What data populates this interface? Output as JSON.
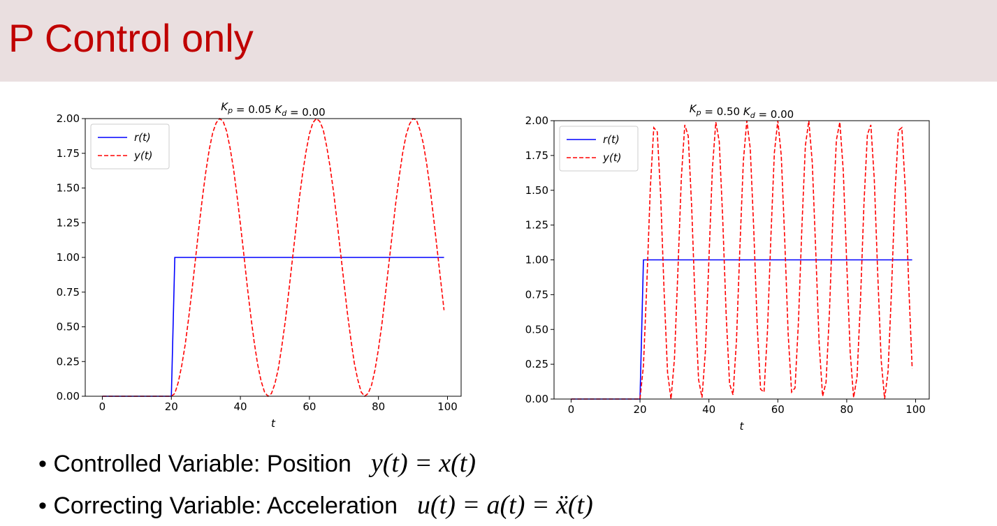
{
  "title": "P Control only",
  "bullets": [
    {
      "text": "Controlled Variable: Position",
      "equation": "y(t) = x(t)"
    },
    {
      "text": "Correcting Variable: Acceleration",
      "equation": "u(t) = a(t) = ẍ(t)"
    }
  ],
  "chart_data": [
    {
      "type": "line",
      "title": "Kp = 0.05   Kd = 0.00",
      "xlabel": "t",
      "xlim": [
        -4.95,
        103.95
      ],
      "xticks": [
        0,
        20,
        40,
        60,
        80,
        100
      ],
      "ylim": [
        0,
        2
      ],
      "yticks": [
        {
          "value": 0,
          "label": "0.00"
        },
        {
          "value": 0.25,
          "label": "0.25"
        },
        {
          "value": 0.5,
          "label": "0.50"
        },
        {
          "value": 0.75,
          "label": "0.75"
        },
        {
          "value": 1,
          "label": "1.00"
        },
        {
          "value": 1.25,
          "label": "1.25"
        },
        {
          "value": 1.5,
          "label": "1.50"
        },
        {
          "value": 1.75,
          "label": "1.75"
        },
        {
          "value": 2,
          "label": "2.00"
        }
      ],
      "legend": "upper left",
      "x": [
        0,
        1,
        2,
        3,
        4,
        5,
        6,
        7,
        8,
        9,
        10,
        11,
        12,
        13,
        14,
        15,
        16,
        17,
        18,
        19,
        20,
        21,
        22,
        23,
        24,
        25,
        26,
        27,
        28,
        29,
        30,
        31,
        32,
        33,
        34,
        35,
        36,
        37,
        38,
        39,
        40,
        41,
        42,
        43,
        44,
        45,
        46,
        47,
        48,
        49,
        50,
        51,
        52,
        53,
        54,
        55,
        56,
        57,
        58,
        59,
        60,
        61,
        62,
        63,
        64,
        65,
        66,
        67,
        68,
        69,
        70,
        71,
        72,
        73,
        74,
        75,
        76,
        77,
        78,
        79,
        80,
        81,
        82,
        83,
        84,
        85,
        86,
        87,
        88,
        89,
        90,
        91,
        92,
        93,
        94,
        95,
        96,
        97,
        98,
        99
      ],
      "series": [
        {
          "name": "r(t)",
          "color": "#0000ff",
          "linestyle": "solid",
          "values": [
            0,
            0,
            0,
            0,
            0,
            0,
            0,
            0,
            0,
            0,
            0,
            0,
            0,
            0,
            0,
            0,
            0,
            0,
            0,
            0,
            0,
            1,
            1,
            1,
            1,
            1,
            1,
            1,
            1,
            1,
            1,
            1,
            1,
            1,
            1,
            1,
            1,
            1,
            1,
            1,
            1,
            1,
            1,
            1,
            1,
            1,
            1,
            1,
            1,
            1,
            1,
            1,
            1,
            1,
            1,
            1,
            1,
            1,
            1,
            1,
            1,
            1,
            1,
            1,
            1,
            1,
            1,
            1,
            1,
            1,
            1,
            1,
            1,
            1,
            1,
            1,
            1,
            1,
            1,
            1,
            1,
            1,
            1,
            1,
            1,
            1,
            1,
            1,
            1,
            1,
            1,
            1,
            1,
            1,
            1,
            1,
            1,
            1,
            1,
            1
          ]
        },
        {
          "name": "y(t)",
          "color": "#ff0000",
          "linestyle": "dashed",
          "values": [
            0,
            0,
            0,
            0,
            0,
            0,
            0,
            0,
            0,
            0,
            0,
            0,
            0,
            0,
            0,
            0,
            0,
            0,
            0,
            0,
            0,
            0.02,
            0.1,
            0.22,
            0.37,
            0.56,
            0.77,
            0.99,
            1.22,
            1.43,
            1.62,
            1.78,
            1.9,
            1.97,
            2.0,
            1.98,
            1.91,
            1.79,
            1.64,
            1.45,
            1.24,
            1.02,
            0.79,
            0.58,
            0.39,
            0.23,
            0.11,
            0.03,
            0,
            0.02,
            0.09,
            0.2,
            0.36,
            0.54,
            0.75,
            0.97,
            1.19,
            1.41,
            1.6,
            1.76,
            1.89,
            1.97,
            2.0,
            1.98,
            1.92,
            1.8,
            1.65,
            1.47,
            1.26,
            1.04,
            0.82,
            0.6,
            0.41,
            0.24,
            0.12,
            0.03,
            0,
            0.02,
            0.08,
            0.19,
            0.34,
            0.52,
            0.73,
            0.95,
            1.17,
            1.39,
            1.58,
            1.75,
            1.88,
            1.96,
            2.0,
            1.99,
            1.92,
            1.82,
            1.67,
            1.49,
            1.28,
            1.06,
            0.84,
            0.62
          ]
        }
      ]
    },
    {
      "type": "line",
      "title": "Kp = 0.50   Kd = 0.00",
      "xlabel": "t",
      "xlim": [
        -4.95,
        103.95
      ],
      "xticks": [
        0,
        20,
        40,
        60,
        80,
        100
      ],
      "ylim": [
        0,
        2
      ],
      "yticks": [
        {
          "value": 0,
          "label": "0.00"
        },
        {
          "value": 0.25,
          "label": "0.25"
        },
        {
          "value": 0.5,
          "label": "0.50"
        },
        {
          "value": 0.75,
          "label": "0.75"
        },
        {
          "value": 1,
          "label": "1.00"
        },
        {
          "value": 1.25,
          "label": "1.25"
        },
        {
          "value": 1.5,
          "label": "1.50"
        },
        {
          "value": 1.75,
          "label": "1.75"
        },
        {
          "value": 2,
          "label": "2.00"
        }
      ],
      "legend": "upper left",
      "x": [
        0,
        1,
        2,
        3,
        4,
        5,
        6,
        7,
        8,
        9,
        10,
        11,
        12,
        13,
        14,
        15,
        16,
        17,
        18,
        19,
        20,
        21,
        22,
        23,
        24,
        25,
        26,
        27,
        28,
        29,
        30,
        31,
        32,
        33,
        34,
        35,
        36,
        37,
        38,
        39,
        40,
        41,
        42,
        43,
        44,
        45,
        46,
        47,
        48,
        49,
        50,
        51,
        52,
        53,
        54,
        55,
        56,
        57,
        58,
        59,
        60,
        61,
        62,
        63,
        64,
        65,
        66,
        67,
        68,
        69,
        70,
        71,
        72,
        73,
        74,
        75,
        76,
        77,
        78,
        79,
        80,
        81,
        82,
        83,
        84,
        85,
        86,
        87,
        88,
        89,
        90,
        91,
        92,
        93,
        94,
        95,
        96,
        97,
        98,
        99
      ],
      "series": [
        {
          "name": "r(t)",
          "color": "#0000ff",
          "linestyle": "solid",
          "values": [
            0,
            0,
            0,
            0,
            0,
            0,
            0,
            0,
            0,
            0,
            0,
            0,
            0,
            0,
            0,
            0,
            0,
            0,
            0,
            0,
            0,
            1,
            1,
            1,
            1,
            1,
            1,
            1,
            1,
            1,
            1,
            1,
            1,
            1,
            1,
            1,
            1,
            1,
            1,
            1,
            1,
            1,
            1,
            1,
            1,
            1,
            1,
            1,
            1,
            1,
            1,
            1,
            1,
            1,
            1,
            1,
            1,
            1,
            1,
            1,
            1,
            1,
            1,
            1,
            1,
            1,
            1,
            1,
            1,
            1,
            1,
            1,
            1,
            1,
            1,
            1,
            1,
            1,
            1,
            1,
            1,
            1,
            1,
            1,
            1,
            1,
            1,
            1,
            1,
            1,
            1,
            1,
            1,
            1,
            1,
            1,
            1,
            1,
            1,
            1
          ]
        },
        {
          "name": "y(t)",
          "color": "#ff0000",
          "linestyle": "dashed",
          "values": [
            0,
            0,
            0,
            0,
            0,
            0,
            0,
            0,
            0,
            0,
            0,
            0,
            0,
            0,
            0,
            0,
            0,
            0,
            0,
            0,
            0,
            0.24,
            0.84,
            1.52,
            1.95,
            1.92,
            1.46,
            0.77,
            0.19,
            0,
            0.29,
            0.92,
            1.59,
            1.97,
            1.89,
            1.38,
            0.69,
            0.14,
            0.01,
            0.35,
            1.0,
            1.65,
            1.99,
            1.85,
            1.3,
            0.61,
            0.11,
            0.03,
            0.42,
            1.09,
            1.71,
            2.0,
            1.8,
            1.23,
            0.54,
            0.07,
            0.05,
            0.49,
            1.17,
            1.77,
            2.0,
            1.75,
            1.15,
            0.47,
            0.05,
            0.08,
            0.56,
            1.24,
            1.82,
            2.0,
            1.7,
            1.07,
            0.4,
            0.02,
            0.12,
            0.63,
            1.32,
            1.86,
            1.99,
            1.64,
            0.98,
            0.34,
            0.01,
            0.16,
            0.71,
            1.4,
            1.9,
            1.97,
            1.58,
            0.9,
            0.28,
            0,
            0.2,
            0.78,
            1.47,
            1.93,
            1.95,
            1.51,
            0.82,
            0.22
          ]
        }
      ]
    }
  ]
}
